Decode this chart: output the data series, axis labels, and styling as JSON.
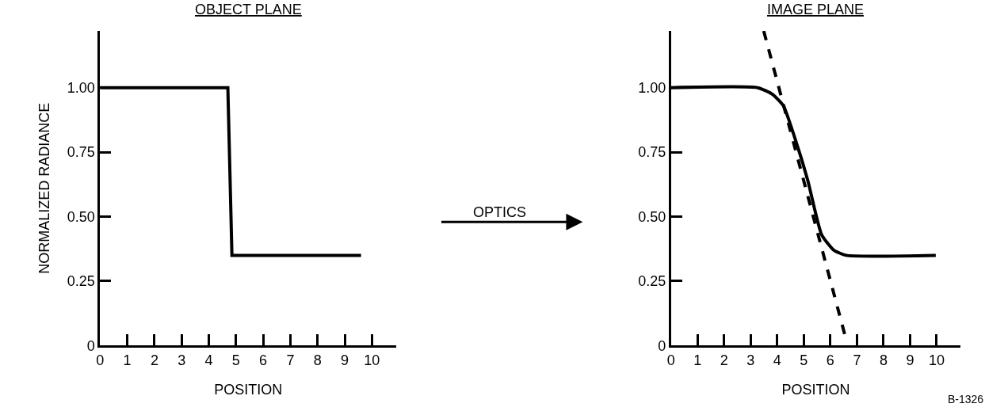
{
  "chart_data": [
    {
      "type": "line",
      "title": "OBJECT PLANE",
      "xlabel": "POSITION",
      "ylabel": "NORMALIZED RADIANCE",
      "series": [
        {
          "color": "#000000",
          "x": [
            0,
            4.7,
            4.85,
            9.6
          ],
          "values": [
            1.0,
            1.0,
            0.35,
            0.35
          ]
        }
      ],
      "xlim": [
        0,
        10.9
      ],
      "xticks": [
        0,
        1,
        2,
        3,
        4,
        5,
        6,
        7,
        8,
        9,
        10
      ],
      "ylim": [
        0,
        1.22
      ],
      "yticks": [
        {
          "value": 0,
          "label": "0"
        },
        {
          "value": 0.25,
          "label": "0.25"
        },
        {
          "value": 0.5,
          "label": "0.50"
        },
        {
          "value": 0.75,
          "label": "0.75"
        },
        {
          "value": 1,
          "label": "1.00"
        }
      ],
      "annotations": [
        "OPTICS"
      ]
    },
    {
      "type": "line",
      "title": "IMAGE PLANE",
      "xlabel": "POSITION",
      "series": [
        {
          "color": "#000000",
          "line_style": "solid",
          "x": [
            0,
            3.26,
            3.81,
            4.23,
            4.74,
            5.15,
            5.67,
            6.13,
            6.59,
            9.97
          ],
          "values": [
            1.0,
            1.0,
            0.975,
            0.93,
            0.78,
            0.64,
            0.43,
            0.37,
            0.35,
            0.35
          ]
        },
        {
          "color": "#000000",
          "line_style": "dashed",
          "x": [
            3.49,
            6.55
          ],
          "values": [
            1.22,
            0.04
          ]
        }
      ],
      "xlim": [
        0,
        10.9
      ],
      "xticks": [
        0,
        1,
        2,
        3,
        4,
        5,
        6,
        7,
        8,
        9,
        10
      ],
      "ylim": [
        0,
        1.22
      ],
      "yticks": [
        {
          "value": 0,
          "label": "0"
        },
        {
          "value": 0.25,
          "label": "0.25"
        },
        {
          "value": 0.5,
          "label": "0.50"
        },
        {
          "value": 0.75,
          "label": "0.75"
        },
        {
          "value": 1,
          "label": "1.00"
        }
      ],
      "annotations": [
        "B-1326"
      ]
    }
  ]
}
